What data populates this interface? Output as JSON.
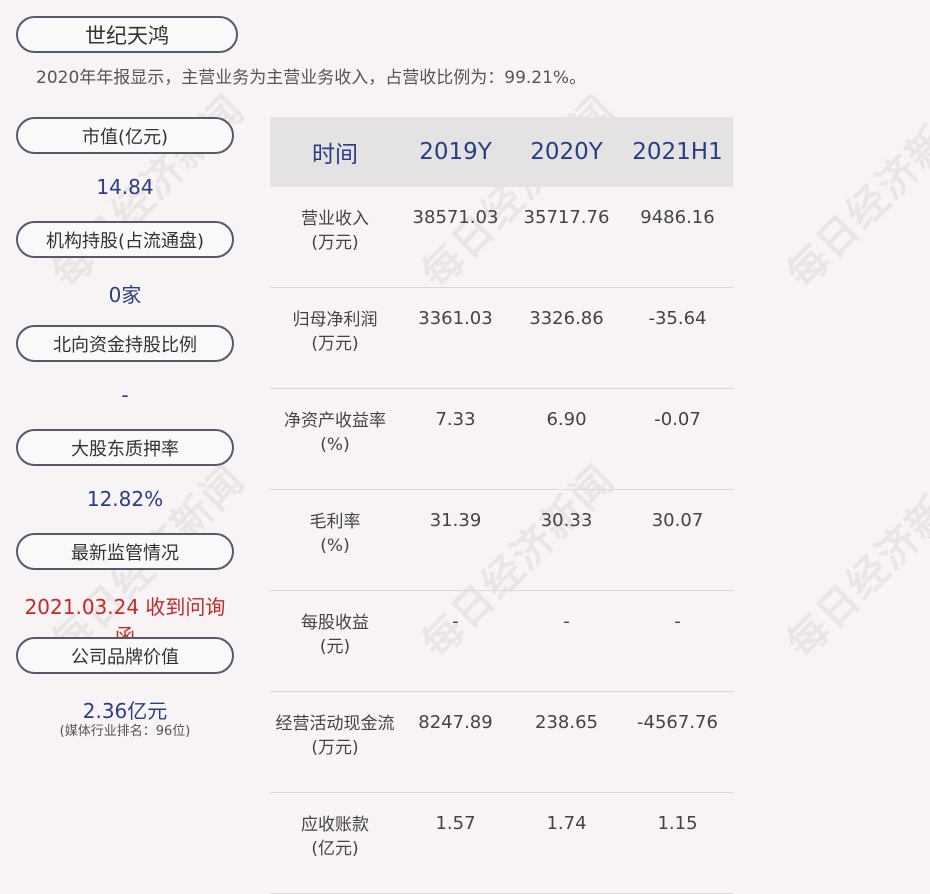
{
  "watermark": "每日经济新闻",
  "header": {
    "company": "世纪天鸿",
    "summary": "2020年年报显示，主营业务为主营业务收入，占营收比例为：99.21%。"
  },
  "sidebar": [
    {
      "label": "市值(亿元)",
      "value": "14.84"
    },
    {
      "label": "机构持股(占流通盘)",
      "value": "0家"
    },
    {
      "label": "北向资金持股比例",
      "value": "-"
    },
    {
      "label": "大股东质押率",
      "value": "12.82%"
    },
    {
      "label": "最新监管情况",
      "value": "2021.03.24 收到问询函"
    },
    {
      "label": "公司品牌价值",
      "value": "2.36亿元",
      "note": "(媒体行业排名：96位)"
    }
  ],
  "table": {
    "headers": [
      "时间",
      "2019Y",
      "2020Y",
      "2021H1"
    ],
    "rows": [
      {
        "label": "营业收入",
        "unit": "(万元)",
        "values": [
          "38571.03",
          "35717.76",
          "9486.16"
        ]
      },
      {
        "label": "归母净利润",
        "unit": "(万元)",
        "values": [
          "3361.03",
          "3326.86",
          "-35.64"
        ]
      },
      {
        "label": "净资产收益率",
        "unit": "(%)",
        "values": [
          "7.33",
          "6.90",
          "-0.07"
        ]
      },
      {
        "label": "毛利率",
        "unit": "(%)",
        "values": [
          "31.39",
          "30.33",
          "30.07"
        ]
      },
      {
        "label": "每股收益",
        "unit": "(元)",
        "values": [
          "-",
          "-",
          "-"
        ]
      },
      {
        "label": "经营活动现金流",
        "unit": "(万元)",
        "values": [
          "8247.89",
          "238.65",
          "-4567.76"
        ]
      },
      {
        "label": "应收账款",
        "unit": "(亿元)",
        "values": [
          "1.57",
          "1.74",
          "1.15"
        ]
      }
    ]
  },
  "colors": {
    "accent_text": "#2a3e86",
    "alert": "#c62828",
    "background": "#f8f3f4"
  }
}
